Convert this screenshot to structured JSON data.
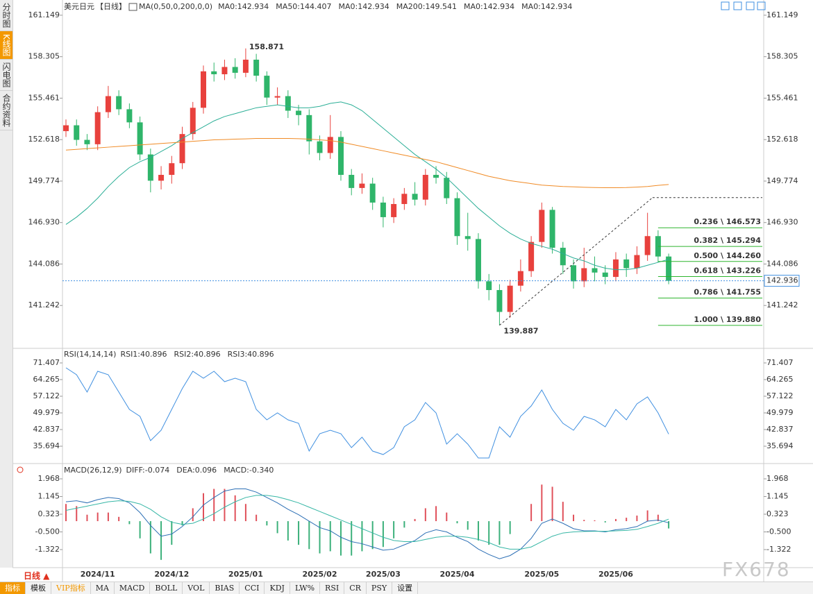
{
  "sidebar": [
    "分时图",
    "K线图",
    "闪电图",
    "合约资料"
  ],
  "period": "日线 ▲",
  "toolbar": [
    "指标",
    "模板",
    "VIP指标",
    "MA",
    "MACD",
    "BOLL",
    "VOL",
    "BIAS",
    "CCI",
    "KDJ",
    "LW%",
    "RSI",
    "CR",
    "PSY",
    "设置"
  ],
  "watermark": "FX678",
  "chart_data": [
    {
      "type": "candlestick",
      "title": "美元日元",
      "period": "【日线】",
      "indicator": "MA(0,50,0,200,0,0)",
      "legend": [
        {
          "label": "MA0:142.934",
          "color": "#3f8fe0"
        },
        {
          "label": "MA50:144.407",
          "color": "#2aae96"
        },
        {
          "label": "MA0:142.934",
          "color": "#3f8fe0"
        },
        {
          "label": "MA200:149.541",
          "color": "#f08a24"
        },
        {
          "label": "MA0:142.934",
          "color": "#e58ad9"
        },
        {
          "label": "MA0:142.934",
          "color": "#9d9fd8"
        }
      ],
      "categories": [
        null,
        null,
        null,
        "2024/11",
        null,
        null,
        null,
        null,
        null,
        null,
        "2024/12",
        null,
        null,
        null,
        null,
        null,
        null,
        "2025/01",
        null,
        null,
        null,
        null,
        null,
        null,
        "2025/02",
        null,
        null,
        null,
        null,
        null,
        "2025/03",
        null,
        null,
        null,
        null,
        null,
        null,
        "2025/04",
        null,
        null,
        null,
        null,
        null,
        null,
        null,
        "2025/05",
        null,
        null,
        null,
        null,
        null,
        null,
        "2025/06",
        null,
        null,
        null,
        null,
        null
      ],
      "ohlc": [
        [
          153.2,
          154.0,
          152.8,
          153.6
        ],
        [
          153.6,
          154.0,
          152.2,
          152.6
        ],
        [
          152.6,
          153.0,
          151.9,
          152.3
        ],
        [
          152.3,
          154.9,
          151.9,
          154.5
        ],
        [
          154.5,
          156.3,
          154.1,
          155.6
        ],
        [
          155.6,
          156.0,
          154.3,
          154.7
        ],
        [
          154.7,
          155.1,
          153.4,
          153.8
        ],
        [
          153.8,
          154.2,
          151.2,
          151.6
        ],
        [
          151.6,
          152.0,
          149.0,
          149.8
        ],
        [
          149.8,
          150.8,
          149.2,
          150.2
        ],
        [
          150.2,
          151.5,
          149.6,
          151.0
        ],
        [
          151.0,
          153.5,
          150.6,
          153.0
        ],
        [
          153.0,
          155.2,
          152.6,
          154.8
        ],
        [
          154.8,
          157.7,
          154.4,
          157.3
        ],
        [
          157.3,
          157.9,
          156.6,
          157.1
        ],
        [
          157.1,
          158.1,
          156.7,
          157.6
        ],
        [
          157.6,
          158.2,
          156.8,
          157.2
        ],
        [
          157.2,
          158.871,
          156.9,
          158.1
        ],
        [
          158.1,
          158.5,
          156.6,
          157.0
        ],
        [
          157.0,
          157.3,
          155.0,
          155.5
        ],
        [
          155.5,
          156.2,
          155.0,
          155.6
        ],
        [
          155.6,
          156.0,
          154.1,
          154.6
        ],
        [
          154.6,
          155.0,
          153.6,
          154.3
        ],
        [
          154.3,
          154.7,
          151.6,
          152.5
        ],
        [
          152.5,
          152.9,
          151.2,
          151.7
        ],
        [
          151.7,
          154.3,
          151.3,
          152.8
        ],
        [
          152.8,
          153.2,
          149.8,
          150.2
        ],
        [
          150.2,
          150.6,
          148.8,
          149.3
        ],
        [
          149.3,
          150.3,
          148.9,
          149.6
        ],
        [
          149.6,
          150.0,
          147.8,
          148.3
        ],
        [
          148.3,
          148.7,
          146.6,
          147.3
        ],
        [
          147.3,
          148.6,
          146.9,
          148.2
        ],
        [
          148.2,
          149.3,
          147.8,
          148.9
        ],
        [
          148.9,
          149.7,
          148.1,
          148.5
        ],
        [
          148.5,
          150.6,
          148.1,
          150.2
        ],
        [
          150.2,
          150.8,
          149.6,
          150.0
        ],
        [
          150.0,
          150.4,
          148.2,
          148.6
        ],
        [
          148.6,
          149.0,
          145.4,
          146.0
        ],
        [
          146.0,
          147.6,
          145.0,
          145.8
        ],
        [
          145.8,
          146.2,
          142.4,
          142.9
        ],
        [
          142.9,
          143.4,
          141.6,
          142.3
        ],
        [
          142.3,
          142.7,
          139.887,
          140.8
        ],
        [
          140.8,
          143.0,
          140.4,
          142.6
        ],
        [
          142.6,
          144.4,
          142.2,
          143.6
        ],
        [
          143.6,
          146.0,
          143.2,
          145.6
        ],
        [
          145.6,
          148.3,
          145.2,
          147.8
        ],
        [
          147.8,
          148.0,
          144.8,
          145.2
        ],
        [
          145.2,
          145.6,
          143.4,
          144.0
        ],
        [
          144.0,
          144.4,
          142.4,
          142.9
        ],
        [
          142.9,
          145.2,
          142.5,
          143.8
        ],
        [
          143.8,
          144.6,
          142.9,
          143.5
        ],
        [
          143.5,
          144.0,
          142.7,
          143.2
        ],
        [
          143.2,
          144.9,
          142.9,
          144.4
        ],
        [
          144.4,
          144.8,
          143.2,
          143.8
        ],
        [
          143.8,
          145.3,
          143.4,
          144.7
        ],
        [
          144.7,
          147.6,
          144.3,
          146.0
        ],
        [
          146.0,
          146.4,
          144.2,
          144.6
        ],
        [
          144.6,
          144.8,
          142.7,
          142.936
        ]
      ],
      "up_color": "#e8413d",
      "down_color": "#2fb56a",
      "series": [
        {
          "color": "#2aae96",
          "values": [
            146.8,
            147.3,
            147.9,
            148.6,
            149.4,
            150.1,
            150.7,
            151.1,
            151.4,
            151.8,
            152.2,
            152.7,
            153.1,
            153.5,
            153.9,
            154.2,
            154.4,
            154.6,
            154.8,
            154.9,
            155.0,
            154.9,
            154.8,
            154.8,
            154.9,
            155.1,
            155.2,
            155.0,
            154.6,
            154.0,
            153.4,
            152.8,
            152.2,
            151.6,
            151.1,
            150.6,
            150.0,
            149.3,
            148.6,
            147.9,
            147.3,
            146.7,
            146.2,
            145.8,
            145.5,
            145.3,
            145.1,
            144.8,
            144.5,
            144.3,
            144.0,
            143.8,
            143.7,
            143.7,
            143.8,
            144.0,
            144.2,
            144.407
          ]
        },
        {
          "color": "#f08a24",
          "values": [
            151.9,
            151.95,
            152.0,
            152.05,
            152.1,
            152.15,
            152.2,
            152.25,
            152.3,
            152.35,
            152.4,
            152.45,
            152.5,
            152.55,
            152.6,
            152.62,
            152.65,
            152.67,
            152.7,
            152.7,
            152.7,
            152.7,
            152.68,
            152.65,
            152.6,
            152.55,
            152.45,
            152.3,
            152.15,
            152.0,
            151.85,
            151.7,
            151.55,
            151.4,
            151.25,
            151.1,
            150.9,
            150.7,
            150.5,
            150.3,
            150.1,
            149.95,
            149.8,
            149.7,
            149.6,
            149.5,
            149.45,
            149.4,
            149.38,
            149.35,
            149.33,
            149.32,
            149.32,
            149.33,
            149.36,
            149.4,
            149.48,
            149.541
          ]
        }
      ],
      "fib_high": 148.64,
      "fib_levels": [
        {
          "value": 146.573,
          "label": "0.236 \\ 146.573"
        },
        {
          "value": 145.294,
          "label": "0.382 \\ 145.294"
        },
        {
          "value": 144.26,
          "label": "0.500 \\ 144.260"
        },
        {
          "value": 143.226,
          "label": "0.618 \\ 143.226"
        },
        {
          "value": 141.755,
          "label": "0.786 \\ 141.755"
        },
        {
          "value": 139.88,
          "label": "1.000 \\ 139.880"
        }
      ],
      "fib_color": "#2db52d",
      "last_price": 142.936,
      "ylim": [
        138.397,
        162.097
      ],
      "yticks": [
        141.242,
        144.086,
        {
          "value": 146.93,
          "label": "146.930"
        },
        149.774,
        152.618,
        155.461,
        158.305,
        161.149
      ]
    },
    {
      "type": "line",
      "title": "RSI(14,14,14)",
      "legend": [
        {
          "label": "RSI1:40.896",
          "color": "#3f8fe0"
        },
        {
          "label": "RSI2:40.896",
          "color": "#2aae96"
        },
        {
          "label": "RSI3:40.896",
          "color": "#3f8fe0"
        }
      ],
      "color": "#3f8fe0",
      "values": [
        69.32,
        66.35,
        58.91,
        67.84,
        66.35,
        58.91,
        51.47,
        48.49,
        38.07,
        42.54,
        51.47,
        60.4,
        67.84,
        64.86,
        67.84,
        63.37,
        64.86,
        63.37,
        51.47,
        47.0,
        49.98,
        47.0,
        45.52,
        33.61,
        41.05,
        42.54,
        41.05,
        35.1,
        39.56,
        33.61,
        32.12,
        35.1,
        44.03,
        47.0,
        54.44,
        49.98,
        36.59,
        41.05,
        36.59,
        30.63,
        30.63,
        44.03,
        39.56,
        48.49,
        52.96,
        59.8,
        51.47,
        45.52,
        42.54,
        48.49,
        47.0,
        44.03,
        51.47,
        47.0,
        53.85,
        56.83,
        49.98,
        40.896
      ],
      "ylim": [
        28.26,
        77.36
      ],
      "yticks": [
        35.694,
        42.837,
        49.979,
        57.122,
        64.265,
        71.407
      ]
    },
    {
      "type": "macd",
      "title": "MACD(26,12,9)",
      "legend": [
        {
          "label": "DIFF:-0.074",
          "color": "#3f8fe0"
        },
        {
          "label": "DEA:0.096",
          "color": "#2aae96"
        },
        {
          "label": "MACD:-0.340",
          "color": "#3f8fe0"
        }
      ],
      "series": [
        {
          "color": "#2c6fb5",
          "values": [
            0.9,
            0.95,
            0.85,
            1.0,
            1.1,
            1.05,
            0.85,
            0.4,
            -0.2,
            -0.7,
            -0.6,
            -0.25,
            0.2,
            0.75,
            1.1,
            1.4,
            1.5,
            1.5,
            1.35,
            1.1,
            0.85,
            0.55,
            0.3,
            0.0,
            -0.3,
            -0.45,
            -0.75,
            -0.95,
            -1.05,
            -1.2,
            -1.35,
            -1.3,
            -1.1,
            -0.9,
            -0.55,
            -0.4,
            -0.5,
            -0.75,
            -0.95,
            -1.3,
            -1.55,
            -1.75,
            -1.6,
            -1.3,
            -0.8,
            -0.1,
            0.1,
            -0.1,
            -0.35,
            -0.45,
            -0.45,
            -0.5,
            -0.4,
            -0.35,
            -0.25,
            0.0,
            0.05,
            -0.074
          ]
        },
        {
          "color": "#35b6a5",
          "values": [
            0.5,
            0.6,
            0.7,
            0.8,
            0.9,
            0.95,
            0.92,
            0.8,
            0.55,
            0.2,
            -0.05,
            -0.15,
            -0.1,
            0.1,
            0.35,
            0.65,
            0.9,
            1.1,
            1.2,
            1.2,
            1.13,
            1.0,
            0.85,
            0.65,
            0.45,
            0.25,
            0.05,
            -0.15,
            -0.35,
            -0.55,
            -0.75,
            -0.9,
            -0.95,
            -0.95,
            -0.85,
            -0.75,
            -0.7,
            -0.7,
            -0.75,
            -0.85,
            -1.0,
            -1.2,
            -1.3,
            -1.3,
            -1.2,
            -0.95,
            -0.7,
            -0.55,
            -0.5,
            -0.48,
            -0.47,
            -0.47,
            -0.45,
            -0.43,
            -0.38,
            -0.25,
            -0.1,
            0.096
          ]
        }
      ],
      "bars": [
        0.8,
        0.7,
        0.3,
        0.4,
        0.4,
        0.2,
        -0.14,
        -0.8,
        -1.5,
        -1.8,
        -1.1,
        -0.2,
        0.6,
        1.3,
        1.5,
        1.5,
        1.2,
        0.8,
        0.3,
        -0.2,
        -0.56,
        -0.9,
        -1.1,
        -1.3,
        -1.5,
        -1.4,
        -1.6,
        -1.6,
        -1.4,
        -1.3,
        -1.2,
        -0.8,
        -0.3,
        0.1,
        0.6,
        0.7,
        0.4,
        -0.1,
        -0.4,
        -0.9,
        -1.1,
        -1.1,
        -0.6,
        0.0,
        0.8,
        1.7,
        1.6,
        0.9,
        0.3,
        0.06,
        0.04,
        -0.06,
        0.1,
        0.16,
        0.26,
        0.5,
        0.3,
        -0.34
      ],
      "up_color": "#e0505a",
      "down_color": "#3bb07a",
      "ylim": [
        -2.161,
        2.614
      ],
      "yticks": [
        -1.322,
        {
          "value": -0.5,
          "label": "-0.500"
        },
        0.323,
        1.145,
        1.968
      ]
    }
  ]
}
